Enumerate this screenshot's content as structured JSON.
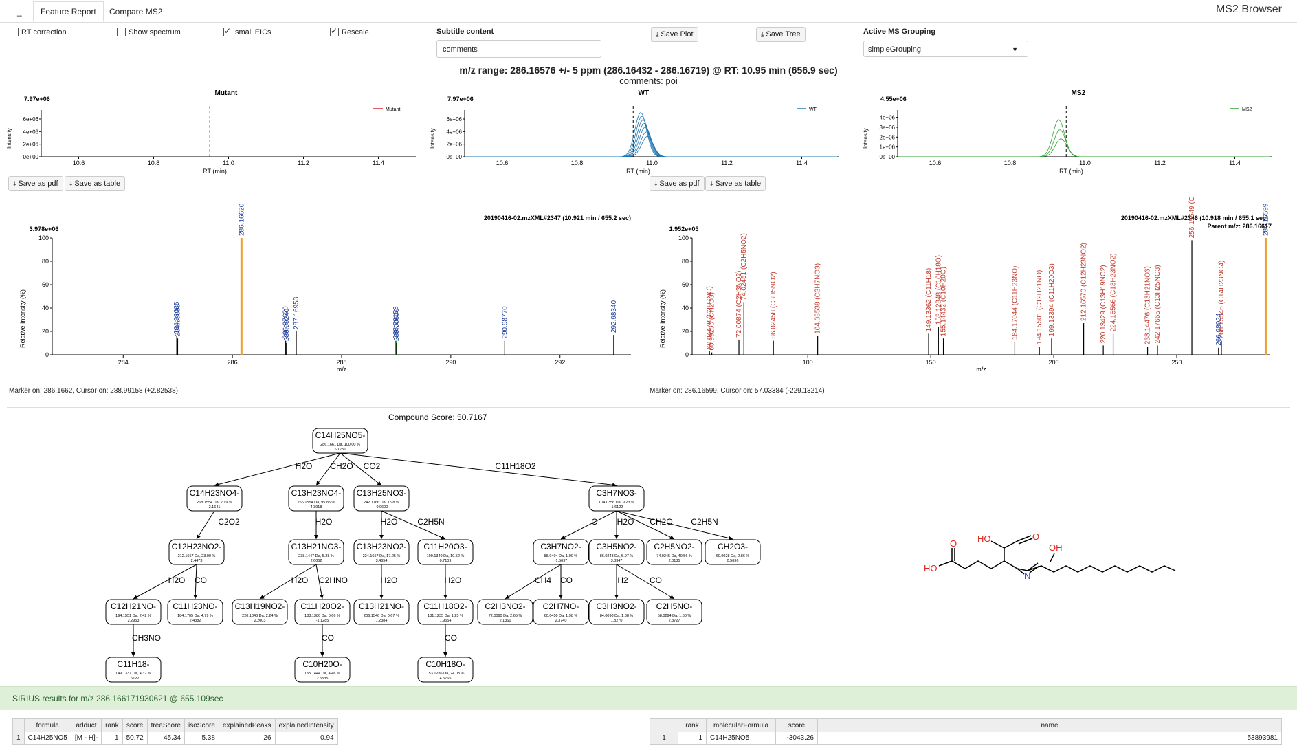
{
  "tabs": {
    "menu": "_",
    "feature_report": "Feature Report",
    "compare_ms2": "Compare MS2"
  },
  "app_title": "MS2 Browser",
  "controls": {
    "rt_correction": {
      "label": "RT correction",
      "checked": false
    },
    "show_spectrum": {
      "label": "Show spectrum",
      "checked": false
    },
    "small_eics": {
      "label": "small EICs",
      "checked": true
    },
    "rescale": {
      "label": "Rescale",
      "checked": true
    },
    "subtitle_label": "Subtitle content",
    "subtitle_value": "comments",
    "save_plot": "Save Plot",
    "save_tree": "Save Tree",
    "grouping_label": "Active MS Grouping",
    "grouping_value": "simpleGrouping"
  },
  "headline": "m/z range: 286.16576 +/- 5 ppm (286.16432 - 286.16719) @ RT: 10.95 min (656.9 sec)",
  "subtitle": "comments: poi",
  "eic_panels": [
    {
      "title": "Mutant",
      "ymax_label": "7.97e+06",
      "legend": "Mutant",
      "color": "#d62728",
      "ylabel": "Intensity",
      "xlabel": "RT (min)"
    },
    {
      "title": "WT",
      "ymax_label": "7.97e+06",
      "legend": "WT",
      "color": "#1f77b4",
      "ylabel": "Intensity",
      "xlabel": "RT (min)"
    },
    {
      "title": "MS2",
      "ymax_label": "4.55e+06",
      "legend": "MS2",
      "color": "#2ca02c",
      "ylabel": "Intensity",
      "xlabel": "RT (min)"
    }
  ],
  "eic_xticks": [
    "10.6",
    "10.8",
    "11.0",
    "11.2",
    "11.4"
  ],
  "eic_yticks_a": [
    "0e+00",
    "2e+06",
    "4e+06",
    "6e+06"
  ],
  "eic_yticks_c": [
    "0e+00",
    "1e+06",
    "2e+06",
    "3e+06",
    "4e+06"
  ],
  "save_pdf": "Save as pdf",
  "save_table": "Save as table",
  "spectrum_left": {
    "title": "20190416-02.mzXML#2347 (10.921 min / 655.2 sec)",
    "ymax_label": "3.978e+06",
    "ylabel": "Relative Intensity (%)",
    "xlabel": "m/z",
    "marker": "Marker on: 286.1662, Cursor on: 288.99158 (+2.82538)",
    "xticks": [
      "284",
      "286",
      "288",
      "290",
      "292"
    ],
    "yticks": [
      "0",
      "20",
      "40",
      "60",
      "80",
      "100"
    ]
  },
  "spectrum_right": {
    "title": "20190416-02.mzXML#2346 (10.918 min / 655.1 sec)",
    "parent": "Parent m/z: 286.16617",
    "ymax_label": "1.952e+05",
    "ylabel": "Relative Intensity (%)",
    "xlabel": "m/z",
    "marker": "Marker on: 286.16599, Cursor on: 57.03384 (-229.13214)",
    "xticks": [
      "100",
      "150",
      "200",
      "250"
    ],
    "yticks": [
      "0",
      "20",
      "40",
      "60",
      "80",
      "100"
    ]
  },
  "chart_data": [
    {
      "type": "bar",
      "title": "20190416-02.mzXML#2347 (10.921 min / 655.2 sec)",
      "xlabel": "m/z",
      "ylabel": "Relative Intensity (%)",
      "xlim": [
        282.7,
        293.3
      ],
      "ylim": [
        0,
        100
      ],
      "peaks": [
        {
          "mz": 284.98035,
          "y": 16,
          "label": "284.98035",
          "color": "#1f3d99"
        },
        {
          "mz": 284.99698,
          "y": 14,
          "label": "284.99698",
          "color": "#1f3d99"
        },
        {
          "mz": 286.1662,
          "y": 100,
          "label": "286.16620",
          "color": "#1f3d99",
          "bar": "#f0a030"
        },
        {
          "mz": 286.9762,
          "y": 12,
          "label": "286.97620",
          "color": "#1f3d99"
        },
        {
          "mz": 286.9924,
          "y": 10,
          "label": "286.99240",
          "color": "#1f3d99"
        },
        {
          "mz": 287.16953,
          "y": 20,
          "label": "287.16953",
          "color": "#1f3d99"
        },
        {
          "mz": 288.99158,
          "y": 12,
          "label": "288.99158",
          "color": "#1f3d99",
          "bar": "#2ca02c"
        },
        {
          "mz": 289.006,
          "y": 10,
          "label": "289.00600",
          "color": "#1f3d99"
        },
        {
          "mz": 290.9877,
          "y": 12,
          "label": "290.98770",
          "color": "#1f3d99"
        },
        {
          "mz": 292.9834,
          "y": 17,
          "label": "292.98340",
          "color": "#1f3d99"
        }
      ]
    },
    {
      "type": "bar",
      "title": "20190416-02.mzXML#2346 (10.918 min / 655.1 sec)",
      "xlabel": "m/z",
      "ylabel": "Relative Intensity (%)",
      "xlim": [
        53,
        288
      ],
      "ylim": [
        0,
        100
      ],
      "peaks": [
        {
          "mz": 60.04478,
          "y": 3,
          "label": "60.04478 (C2H7NO)",
          "color": "#c0392b"
        },
        {
          "mz": 60.9926,
          "y": 2,
          "label": "60.99250 (CH2O3)",
          "color": "#c0392b"
        },
        {
          "mz": 72.00874,
          "y": 13,
          "label": "72.00874 (C2H3NO2)",
          "color": "#c0392b"
        },
        {
          "mz": 74.02451,
          "y": 45,
          "label": "74.02451 (C2H5NO2)",
          "color": "#c0392b"
        },
        {
          "mz": 86.02458,
          "y": 12,
          "label": "86.02458 (C3H5NO2)",
          "color": "#c0392b"
        },
        {
          "mz": 104.03538,
          "y": 16,
          "label": "104.03538 (C3H7NO3)",
          "color": "#c0392b"
        },
        {
          "mz": 149.13362,
          "y": 18,
          "label": "149.13362 (C11H18)",
          "color": "#c0392b"
        },
        {
          "mz": 153.12848,
          "y": 24,
          "label": "153.12848 (C10H18O)",
          "color": "#c0392b"
        },
        {
          "mz": 155.14432,
          "y": 14,
          "label": "155.14432 (C10H20O)",
          "color": "#c0392b"
        },
        {
          "mz": 184.17044,
          "y": 11,
          "label": "184.17044 (C11H23NO)",
          "color": "#c0392b"
        },
        {
          "mz": 194.15501,
          "y": 7,
          "label": "194.15501 (C12H21NO)",
          "color": "#c0392b"
        },
        {
          "mz": 199.13394,
          "y": 14,
          "label": "199.13394 (C11H20O3)",
          "color": "#c0392b"
        },
        {
          "mz": 212.1657,
          "y": 27,
          "label": "212.16570 (C12H23NO2)",
          "color": "#c0392b"
        },
        {
          "mz": 220.13429,
          "y": 8,
          "label": "220.13429 (C13H19NO2)",
          "color": "#c0392b"
        },
        {
          "mz": 224.16566,
          "y": 18,
          "label": "224.16566 (C13H23NO2)",
          "color": "#c0392b"
        },
        {
          "mz": 238.14476,
          "y": 7,
          "label": "238.14476 (C13H21NO3)",
          "color": "#c0392b"
        },
        {
          "mz": 242.17665,
          "y": 8,
          "label": "242.17665 (C13H25NO3)",
          "color": "#c0392b"
        },
        {
          "mz": 256.15549,
          "y": 98,
          "label": "256.15549 (C",
          "color": "#c0392b"
        },
        {
          "mz": 266.98924,
          "y": 6,
          "label": "266.98924",
          "color": "#1f3d99"
        },
        {
          "mz": 268.15546,
          "y": 12,
          "label": "268.15546 (C14H23NO4)",
          "color": "#c0392b"
        },
        {
          "mz": 286.16599,
          "y": 100,
          "label": "286.16599",
          "color": "#1f3d99",
          "bar": "#f0a030"
        }
      ]
    }
  ],
  "tree": {
    "score": "Compound Score: 50.7167",
    "nodes": [
      {
        "id": "n0",
        "f": "C14H25NO5-",
        "d1": "286.1661 Da, 100.00 %",
        "d2": "6.1751"
      },
      {
        "id": "n1",
        "f": "C14H23NO4-",
        "d1": "268.1554 Da, 2.19 %",
        "d2": "2.1641"
      },
      {
        "id": "n2",
        "f": "C13H23NO4-",
        "d1": "256.1554 Da, 95.85 %",
        "d2": "4.3918"
      },
      {
        "id": "n3",
        "f": "C13H25NO3-",
        "d1": "242.1766 Da, 1.98 %",
        "d2": "-0.9600"
      },
      {
        "id": "n4",
        "f": "C3H7NO3-",
        "d1": "104.0356 Da, 9.23 %",
        "d2": "-1.6122"
      },
      {
        "id": "n5",
        "f": "C12H23NO2-",
        "d1": "212.1657 Da, 23.90 %",
        "d2": "2.4473"
      },
      {
        "id": "n6",
        "f": "C13H21NO3-",
        "d1": "238.1447 Da, 5.38 %",
        "d2": "2.6062"
      },
      {
        "id": "n7",
        "f": "C13H23NO2-",
        "d1": "224.1657 Da, 17.25 %",
        "d2": "3.4654"
      },
      {
        "id": "n8",
        "f": "C11H20O3-",
        "d1": "199.1340 Da, 10.52 %",
        "d2": "0.7109"
      },
      {
        "id": "n9",
        "f": "C3H7NO2-",
        "d1": "88.0404 Da, 1.09 %",
        "d2": "-1.5697"
      },
      {
        "id": "n10",
        "f": "C3H5NO2-",
        "d1": "86.0248 Da, 5.97 %",
        "d2": "3.8347"
      },
      {
        "id": "n11",
        "f": "C2H5NO2-",
        "d1": "74.0245 Da, 40.56 %",
        "d2": "2.0135"
      },
      {
        "id": "n12",
        "f": "CH2O3-",
        "d1": "60.9928 Da, 2.86 %",
        "d2": "0.5696"
      },
      {
        "id": "n13",
        "f": "C12H21NO-",
        "d1": "194.1551 Da, 2.42 %",
        "d2": "2.2953"
      },
      {
        "id": "n14",
        "f": "C11H23NO-",
        "d1": "184.1705 Da, 4.79 %",
        "d2": "2.4382"
      },
      {
        "id": "n15",
        "f": "C13H19NO2-",
        "d1": "220.1343 Da, 2.24 %",
        "d2": "2.2003"
      },
      {
        "id": "n16",
        "f": "C11H20O2-",
        "d1": "183.1386 Da, 0.66 %",
        "d2": "-1.1285"
      },
      {
        "id": "n17",
        "f": "C13H21NO-",
        "d1": "206.1546 Da, 0.67 %",
        "d2": "1.2384"
      },
      {
        "id": "n18",
        "f": "C11H18O2-",
        "d1": "181.1235 Da, 1.25 %",
        "d2": "1.9554"
      },
      {
        "id": "n19",
        "f": "C2H3NO2-",
        "d1": "72.0090 Da, 2.65 %",
        "d2": "2.1361"
      },
      {
        "id": "n20",
        "f": "C2H7NO-",
        "d1": "60.0450 Da, 1.98 %",
        "d2": "2.3740"
      },
      {
        "id": "n21",
        "f": "C3H3NO2-",
        "d1": "84.0090 Da, 1.88 %",
        "d2": "1.8270"
      },
      {
        "id": "n22",
        "f": "C2H5NO-",
        "d1": "58.0294 Da, 1.60 %",
        "d2": "2.3727"
      },
      {
        "id": "n23",
        "f": "C11H18-",
        "d1": "149.1337 Da, 4.32 %",
        "d2": "1.6122"
      },
      {
        "id": "n24",
        "f": "C10H20O-",
        "d1": "155.1444 Da, 4.46 %",
        "d2": "2.5535"
      },
      {
        "id": "n25",
        "f": "C10H18O-",
        "d1": "153.1286 Da, 24.03 %",
        "d2": "4.5765"
      }
    ],
    "edges": [
      {
        "from": "n0",
        "to": "n1",
        "label": "H2O"
      },
      {
        "from": "n0",
        "to": "n2",
        "label": "CH2O"
      },
      {
        "from": "n0",
        "to": "n3",
        "label": "CO2"
      },
      {
        "from": "n0",
        "to": "n4",
        "label": "C11H18O2"
      },
      {
        "from": "n1",
        "to": "n5",
        "label": "C2O2"
      },
      {
        "from": "n2",
        "to": "n6",
        "label": "H2O"
      },
      {
        "from": "n3",
        "to": "n7",
        "label": "H2O"
      },
      {
        "from": "n3",
        "to": "n8",
        "label": "C2H5N"
      },
      {
        "from": "n4",
        "to": "n9",
        "label": "O"
      },
      {
        "from": "n4",
        "to": "n10",
        "label": "H2O"
      },
      {
        "from": "n4",
        "to": "n11",
        "label": "CH2O"
      },
      {
        "from": "n4",
        "to": "n12",
        "label": "C2H5N"
      },
      {
        "from": "n5",
        "to": "n13",
        "label": "H2O"
      },
      {
        "from": "n5",
        "to": "n14",
        "label": "CO"
      },
      {
        "from": "n6",
        "to": "n15",
        "label": "H2O"
      },
      {
        "from": "n6",
        "to": "n16",
        "label": "C2HNO"
      },
      {
        "from": "n7",
        "to": "n17",
        "label": "H2O"
      },
      {
        "from": "n8",
        "to": "n18",
        "label": "H2O"
      },
      {
        "from": "n9",
        "to": "n19",
        "label": "CH4"
      },
      {
        "from": "n9",
        "to": "n20",
        "label": "CO"
      },
      {
        "from": "n10",
        "to": "n21",
        "label": "H2"
      },
      {
        "from": "n10",
        "to": "n22",
        "label": "CO"
      },
      {
        "from": "n13",
        "to": "n23",
        "label": "CH3NO"
      },
      {
        "from": "n16",
        "to": "n24",
        "label": "CO"
      },
      {
        "from": "n18",
        "to": "n25",
        "label": "CO"
      }
    ]
  },
  "molecule_labels": {
    "ho1": "HO",
    "o1": "O",
    "ho2": "HO",
    "o2": "O",
    "oh": "OH",
    "o3": "O",
    "n": "N"
  },
  "sirius_banner": "SIRIUS results for m/z 286.166171930621 @ 655.109sec",
  "table_left": {
    "headers": [
      "",
      "formula",
      "adduct",
      "rank",
      "score",
      "treeScore",
      "isoScore",
      "explainedPeaks",
      "explainedIntensity"
    ],
    "row": [
      "1",
      "C14H25NO5",
      "[M - H]-",
      "1",
      "50.72",
      "45.34",
      "5.38",
      "26",
      "0.94"
    ]
  },
  "table_right": {
    "headers": [
      "",
      "rank",
      "molecularFormula",
      "score",
      "name"
    ],
    "row": [
      "1",
      "1",
      "C14H25NO5",
      "-3043.26",
      "53893981"
    ]
  }
}
